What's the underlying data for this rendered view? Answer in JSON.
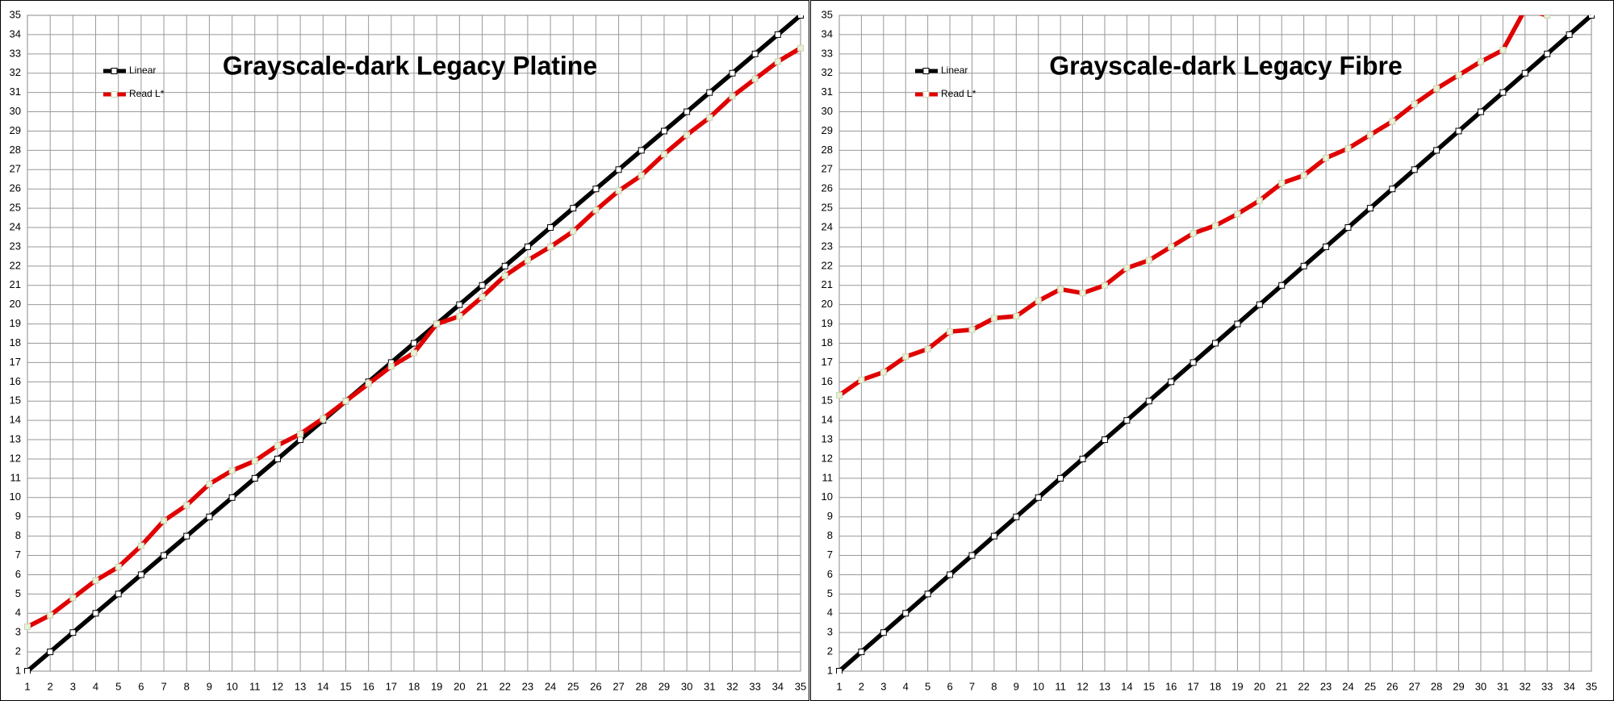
{
  "chart_data": [
    {
      "type": "line",
      "title": "Grayscale-dark Legacy Platine",
      "x": [
        1,
        2,
        3,
        4,
        5,
        6,
        7,
        8,
        9,
        10,
        11,
        12,
        13,
        14,
        15,
        16,
        17,
        18,
        19,
        20,
        21,
        22,
        23,
        24,
        25,
        26,
        27,
        28,
        29,
        30,
        31,
        32,
        33,
        34,
        35
      ],
      "series": [
        {
          "name": "Linear",
          "color": "#000000",
          "values": [
            1,
            2,
            3,
            4,
            5,
            6,
            7,
            8,
            9,
            10,
            11,
            12,
            13,
            14,
            15,
            16,
            17,
            18,
            19,
            20,
            21,
            22,
            23,
            24,
            25,
            26,
            27,
            28,
            29,
            30,
            31,
            32,
            33,
            34,
            35
          ]
        },
        {
          "name": "Read L*",
          "color": "#e00000",
          "values": [
            3.3,
            3.9,
            4.8,
            5.7,
            6.4,
            7.5,
            8.8,
            9.6,
            10.7,
            11.4,
            11.9,
            12.7,
            13.3,
            14.1,
            15.0,
            15.9,
            16.8,
            17.5,
            19.0,
            19.4,
            20.4,
            21.5,
            22.3,
            23.0,
            23.8,
            24.9,
            25.9,
            26.7,
            27.8,
            28.8,
            29.7,
            30.8,
            31.7,
            32.6,
            33.3
          ]
        }
      ],
      "xlim": [
        1,
        35
      ],
      "ylim": [
        1,
        35
      ],
      "xticks": [
        1,
        2,
        3,
        4,
        5,
        6,
        7,
        8,
        9,
        10,
        11,
        12,
        13,
        14,
        15,
        16,
        17,
        18,
        19,
        20,
        21,
        22,
        23,
        24,
        25,
        26,
        27,
        28,
        29,
        30,
        31,
        32,
        33,
        34,
        35
      ],
      "yticks": [
        1,
        2,
        3,
        4,
        5,
        6,
        7,
        8,
        9,
        10,
        11,
        12,
        13,
        14,
        15,
        16,
        17,
        18,
        19,
        20,
        21,
        22,
        23,
        24,
        25,
        26,
        27,
        28,
        29,
        30,
        31,
        32,
        33,
        34,
        35
      ],
      "grid": true,
      "legend": "upper-left"
    },
    {
      "type": "line",
      "title": "Grayscale-dark Legacy Fibre",
      "x": [
        1,
        2,
        3,
        4,
        5,
        6,
        7,
        8,
        9,
        10,
        11,
        12,
        13,
        14,
        15,
        16,
        17,
        18,
        19,
        20,
        21,
        22,
        23,
        24,
        25,
        26,
        27,
        28,
        29,
        30,
        31,
        32,
        33,
        34,
        35
      ],
      "series": [
        {
          "name": "Linear",
          "color": "#000000",
          "values": [
            1,
            2,
            3,
            4,
            5,
            6,
            7,
            8,
            9,
            10,
            11,
            12,
            13,
            14,
            15,
            16,
            17,
            18,
            19,
            20,
            21,
            22,
            23,
            24,
            25,
            26,
            27,
            28,
            29,
            30,
            31,
            32,
            33,
            34,
            35
          ]
        },
        {
          "name": "Read L*",
          "color": "#e00000",
          "values": [
            15.3,
            16.1,
            16.5,
            17.3,
            17.7,
            18.6,
            18.7,
            19.3,
            19.4,
            20.2,
            20.8,
            20.6,
            21.0,
            21.9,
            22.3,
            23.0,
            23.7,
            24.1,
            24.7,
            25.4,
            26.3,
            26.7,
            27.6,
            28.1,
            28.8,
            29.5,
            30.4,
            31.2,
            31.9,
            32.6,
            33.2,
            35.3,
            35.0,
            null,
            null
          ]
        }
      ],
      "xlim": [
        1,
        35
      ],
      "ylim": [
        1,
        35
      ],
      "xticks": [
        1,
        2,
        3,
        4,
        5,
        6,
        7,
        8,
        9,
        10,
        11,
        12,
        13,
        14,
        15,
        16,
        17,
        18,
        19,
        20,
        21,
        22,
        23,
        24,
        25,
        26,
        27,
        28,
        29,
        30,
        31,
        32,
        33,
        34,
        35
      ],
      "yticks": [
        1,
        2,
        3,
        4,
        5,
        6,
        7,
        8,
        9,
        10,
        11,
        12,
        13,
        14,
        15,
        16,
        17,
        18,
        19,
        20,
        21,
        22,
        23,
        24,
        25,
        26,
        27,
        28,
        29,
        30,
        31,
        32,
        33,
        34,
        35
      ],
      "grid": true,
      "legend": "upper-left"
    }
  ]
}
